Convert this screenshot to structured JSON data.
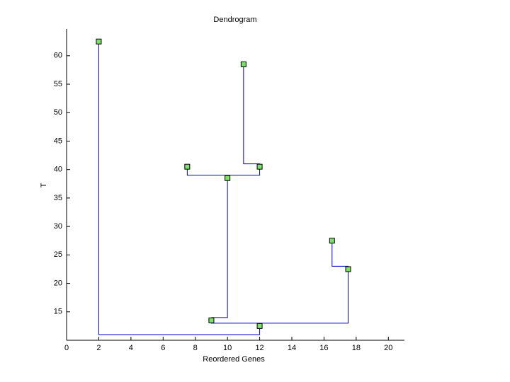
{
  "chart_data": {
    "type": "dendrogram",
    "title": "Dendrogram",
    "x_label": "Reordered Genes",
    "y_label": "T",
    "xlim": [
      0,
      21
    ],
    "ylim": [
      10,
      64.7
    ],
    "xticks": [
      0,
      2,
      4,
      6,
      8,
      10,
      12,
      14,
      16,
      18,
      20
    ],
    "yticks": [
      15,
      20,
      25,
      30,
      35,
      40,
      45,
      50,
      55,
      60
    ],
    "link_color": "#0000cc",
    "marker_color": "#7be36a",
    "links": [
      {
        "x": [
          2,
          2,
          12,
          12
        ],
        "y": [
          62.5,
          11,
          11,
          12.5
        ]
      },
      {
        "x": [
          9,
          9,
          17.5,
          17.5
        ],
        "y": [
          13.5,
          13,
          13,
          22.5
        ]
      },
      {
        "x": [
          9,
          10,
          10
        ],
        "y": [
          14,
          14,
          38.5
        ]
      },
      {
        "x": [
          7.5,
          7.5,
          12,
          12
        ],
        "y": [
          40.5,
          39,
          39,
          40.5
        ]
      },
      {
        "x": [
          11,
          11,
          12,
          12
        ],
        "y": [
          58.5,
          41,
          41,
          40.5
        ]
      },
      {
        "x": [
          16.5,
          16.5,
          17.5,
          17.5
        ],
        "y": [
          27.5,
          23,
          23,
          22.5
        ]
      }
    ],
    "nodes": {
      "x": [
        2,
        12,
        9,
        17.5,
        10,
        7.5,
        12,
        11,
        16.5
      ],
      "y": [
        62.5,
        12.5,
        13.5,
        22.5,
        38.5,
        40.5,
        40.5,
        58.5,
        27.5
      ]
    }
  }
}
